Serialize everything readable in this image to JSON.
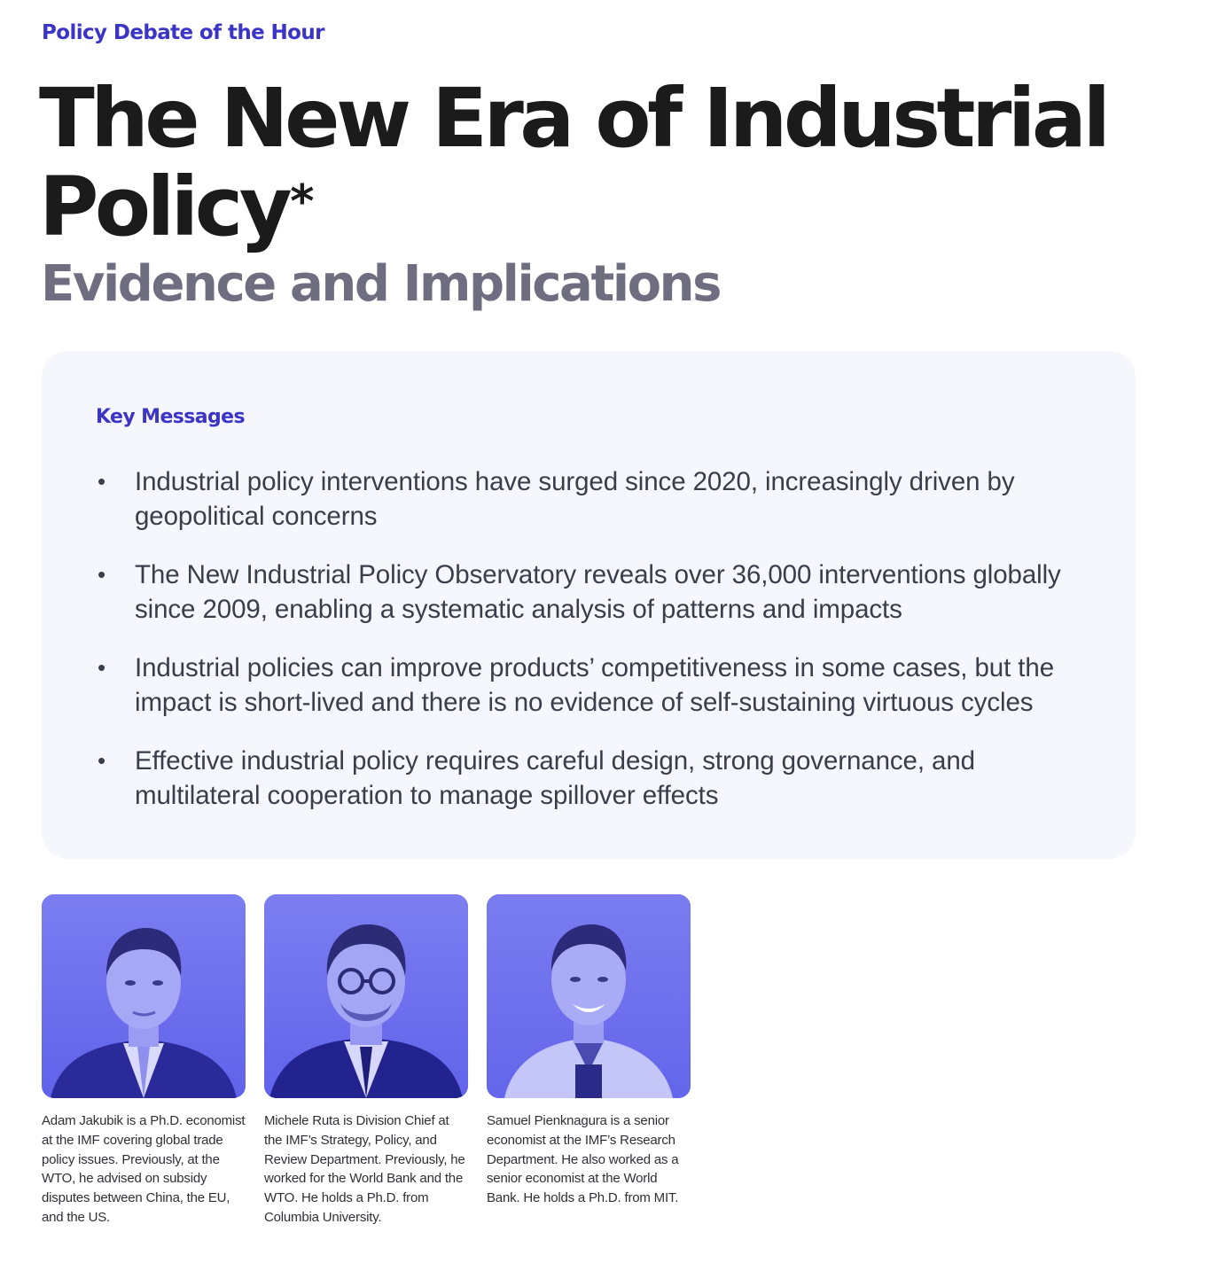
{
  "header": {
    "kicker": "Policy Debate of the Hour",
    "title": "The New Era of Industrial Policy",
    "title_mark": "*",
    "subtitle": "Evidence and Implications"
  },
  "key_messages": {
    "heading": "Key Messages",
    "items": [
      "Industrial policy interventions have surged since 2020, increasingly driven by geopolitical concerns",
      "The New Industrial Policy Observatory reveals over 36,000 interventions globally since 2009, enabling a systematic analysis of patterns and impacts",
      "Industrial policies can improve products’ competitiveness in some cases, but the impact is short-lived and there is no evidence of self-sustaining virtuous cycles",
      "Effective industrial policy requires careful design, strong governance, and multilateral cooperation to manage spillover effects"
    ]
  },
  "authors": [
    {
      "bio": "Adam Jakubik is a Ph.D. economist at the IMF covering global trade policy issues. Previously, at the WTO, he advised on subsidy disputes between China, the EU, and the US."
    },
    {
      "bio": "Michele Ruta is Division Chief at the IMF’s Strategy, Policy, and Review Department. Previously, he worked for the World Bank and the WTO. He holds a Ph.D. from Columbia University."
    },
    {
      "bio": "Samuel Pienknagura is a senior economist at the IMF’s Research Department. He also worked as a senior economist at the World Bank. He holds a Ph.D. from MIT."
    }
  ],
  "colors": {
    "accent": "#3b35c7",
    "photo_tint": "#6f70ee",
    "key_box_bg": "#f6f6fd",
    "subtitle": "#6e6e80"
  }
}
